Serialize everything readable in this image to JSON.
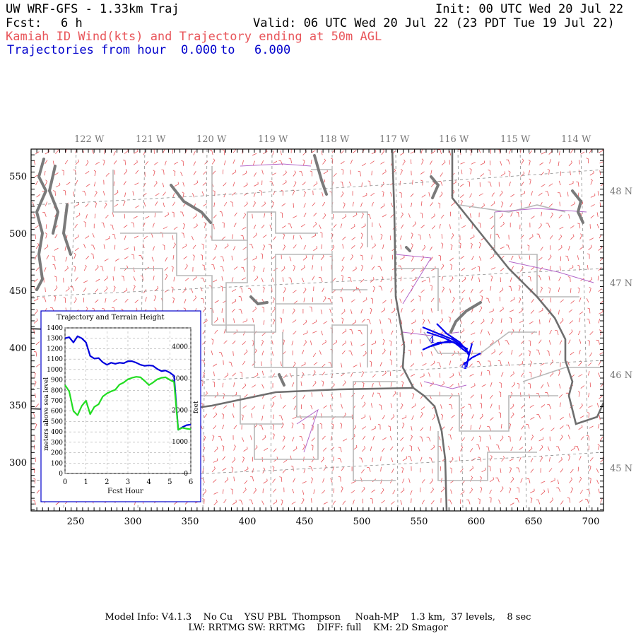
{
  "header": {
    "title": "UW WRF-GFS - 1.33km Traj",
    "init": "Init: 00 UTC Wed 20 Jul 22",
    "fcst_label": "Fcst:",
    "fcst_value": "6 h",
    "valid": "Valid: 06 UTC Wed 20 Jul 22 (23 PDT Tue 19 Jul 22)",
    "field": "Kamiah ID Wind(kts) and Trajectory ending at 50m AGL",
    "traj_label": "Trajectories from hour",
    "traj_from": "0.000",
    "traj_to_word": "to",
    "traj_to": "6.000"
  },
  "map": {
    "top_lon_labels": [
      "122 W",
      "121 W",
      "120 W",
      "119 W",
      "118 W",
      "117 W",
      "116 W",
      "115 W",
      "114 W"
    ],
    "right_lat_labels": [
      "48 N",
      "47 N",
      "46 N",
      "45 N"
    ],
    "left_y_ticks": [
      "550",
      "500",
      "450",
      "400",
      "350",
      "300"
    ],
    "bottom_x_ticks": [
      "250",
      "300",
      "350",
      "400",
      "450",
      "500",
      "550",
      "600",
      "650",
      "700"
    ],
    "trajectory_marker_labels": [
      "4",
      "4"
    ],
    "colors": {
      "wind_barb": "#e8555a",
      "county_line": "#b8b8b8",
      "state_line": "#6e6e6e",
      "water": "#7a7a7a",
      "trajectory": "#0000ee",
      "purple_line": "#b366c9"
    }
  },
  "inset": {
    "title": "Trajectory and Terrain Height",
    "xlabel": "Fcst Hour",
    "ylabel_left": "meters above sea level",
    "ylabel_right": "feet"
  },
  "chart_data": {
    "type": "line",
    "title": "Trajectory and Terrain Height",
    "xlabel": "Fcst Hour",
    "ylabel": "meters above sea level",
    "y2label": "feet",
    "xlim": [
      0,
      6
    ],
    "ylim": [
      0,
      1400
    ],
    "y2lim": [
      0,
      4593
    ],
    "x_ticks": [
      "0",
      "1",
      "2",
      "3",
      "4",
      "5",
      "6"
    ],
    "y_ticks": [
      "0",
      "100",
      "200",
      "300",
      "400",
      "500",
      "600",
      "700",
      "800",
      "900",
      "1000",
      "1100",
      "1200",
      "1300",
      "1400"
    ],
    "y2_ticks": [
      "0",
      "1000",
      "2000",
      "3000",
      "4000"
    ],
    "grid": true,
    "series": [
      {
        "color": "#0000dd",
        "x": [
          0.0,
          0.2,
          0.4,
          0.6,
          0.8,
          1.0,
          1.2,
          1.4,
          1.6,
          1.8,
          2.0,
          2.2,
          2.4,
          2.6,
          2.8,
          3.0,
          3.2,
          3.4,
          3.6,
          3.8,
          4.0,
          4.2,
          4.4,
          4.6,
          4.8,
          5.0,
          5.2,
          5.4,
          5.6,
          5.8,
          6.0
        ],
        "y": [
          1300,
          1310,
          1260,
          1320,
          1300,
          1260,
          1130,
          1105,
          1110,
          1070,
          1045,
          1065,
          1055,
          1065,
          1060,
          1080,
          1080,
          1065,
          1045,
          1035,
          1040,
          1035,
          1005,
          985,
          990,
          970,
          940,
          420,
          445,
          465,
          470
        ]
      },
      {
        "color": "#22dd22",
        "x": [
          0.0,
          0.2,
          0.4,
          0.6,
          0.8,
          1.0,
          1.2,
          1.4,
          1.6,
          1.8,
          2.0,
          2.2,
          2.4,
          2.6,
          2.8,
          3.0,
          3.2,
          3.4,
          3.6,
          3.8,
          4.0,
          4.2,
          4.4,
          4.6,
          4.8,
          5.0,
          5.2,
          5.4,
          5.6,
          5.8,
          6.0
        ],
        "y": [
          850,
          790,
          600,
          560,
          650,
          700,
          570,
          640,
          665,
          740,
          770,
          790,
          805,
          855,
          875,
          905,
          920,
          930,
          925,
          890,
          850,
          875,
          905,
          920,
          925,
          900,
          880,
          420,
          440,
          430,
          425
        ]
      }
    ]
  },
  "footer": {
    "line1": "Model Info: V4.1.3    No Cu    YSU PBL  Thompson     Noah-MP    1.3 km,  37 levels,    8 sec",
    "line2": "LW: RRTMG SW: RRTMG    DIFF: full    KM: 2D Smagor"
  }
}
